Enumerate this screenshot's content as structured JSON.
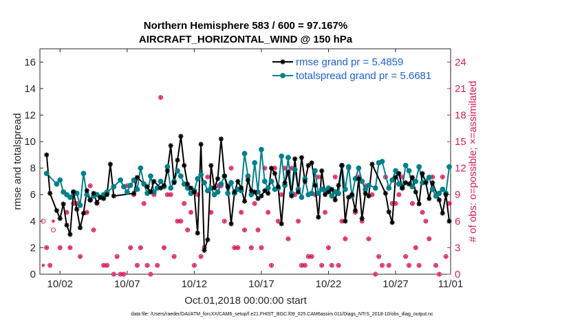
{
  "chart_data": {
    "type": "line",
    "title_line1": "Northern Hemisphere 583 / 600 = 97.167%",
    "title_line2": "AIRCRAFT_HORIZONTAL_WIND @ 150 hPa",
    "ylabel_left": "rmse and totalspread",
    "ylabel_right": "# of obs: o=possible; ×=assimilated",
    "xlabel": "Oct.01,2018 00:00:00 start",
    "footnote": "data file: /Users/raeder/DAI/ATM_forcXX/CAM6_setup/f.e21.FHIST_BGC.f09_025.CAM6assim.011/Diags_NTrS_2018-10/obs_diag_output.nc",
    "xlim": [
      0.5,
      31.1
    ],
    "ylim_left": [
      0,
      17
    ],
    "ylim_right": [
      0,
      25.5
    ],
    "x_ticks": [
      2,
      7,
      12,
      17,
      22,
      27,
      32
    ],
    "x_tick_labels": [
      "10/02",
      "10/07",
      "10/12",
      "10/17",
      "10/22",
      "10/27",
      "11/01"
    ],
    "y_ticks_left": [
      0,
      2,
      4,
      6,
      8,
      10,
      12,
      14,
      16
    ],
    "y_ticks_right": [
      0,
      3,
      6,
      9,
      12,
      15,
      18,
      21,
      24
    ],
    "legend": [
      {
        "label": "rmse grand pr = 5.4859",
        "color": "#000000"
      },
      {
        "label": "totalspread grand pr = 5.6681",
        "color": "#00808a"
      }
    ],
    "colors": {
      "rmse": "#000000",
      "spread": "#00808a",
      "obs": "#d81b60",
      "axis": "#262626"
    },
    "series": [
      {
        "name": "rmse",
        "color": "#000000",
        "x": [
          1.0,
          1.25,
          1.75,
          2.0,
          2.25,
          2.5,
          2.75,
          3.0,
          3.25,
          3.5,
          3.75,
          4.0,
          4.25,
          4.5,
          4.75,
          5.0,
          5.25,
          5.5,
          5.75,
          6.0,
          7.5,
          7.75,
          8.5,
          8.75,
          9.0,
          9.5,
          9.75,
          10.0,
          10.25,
          10.5,
          10.75,
          11.0,
          11.25,
          11.5,
          11.75,
          12.0,
          12.25,
          12.5,
          12.75,
          13.0,
          13.25,
          13.5,
          13.75,
          14.0,
          14.25,
          14.5,
          14.75,
          15.0,
          15.25,
          15.5,
          15.75,
          16.0,
          16.25,
          16.5,
          16.75,
          17.0,
          17.25,
          17.5,
          17.75,
          18.0,
          18.25,
          18.5,
          18.75,
          19.0,
          19.25,
          19.5,
          19.75,
          20.0,
          20.25,
          20.5,
          20.75,
          21.0,
          21.25,
          21.5,
          21.75,
          22.0,
          22.25,
          22.5,
          22.75,
          23.0,
          23.25,
          23.5,
          23.75,
          24.0,
          24.25,
          24.5,
          24.75,
          25.0,
          25.25,
          26.25,
          26.5,
          26.75,
          27.0,
          27.25,
          27.5,
          27.75,
          28.0,
          28.25,
          28.5,
          28.75,
          29.0,
          29.25,
          29.5,
          29.75,
          30.25,
          30.5,
          30.75,
          31.0
        ],
        "y": [
          9.0,
          6.1,
          4.8,
          4.2,
          5.3,
          3.7,
          3.0,
          6.2,
          4.9,
          3.5,
          4.6,
          6.3,
          5.6,
          6.1,
          5.4,
          5.8,
          5.7,
          6.0,
          8.3,
          5.9,
          6.1,
          7.3,
          6.6,
          6.2,
          7.0,
          6.5,
          6.7,
          7.8,
          9.7,
          6.9,
          8.6,
          10.4,
          8.2,
          6.8,
          6.5,
          6.2,
          3.1,
          9.8,
          1.8,
          2.6,
          8.2,
          6.5,
          7.2,
          10.2,
          7.4,
          6.6,
          3.8,
          6.2,
          7.0,
          6.5,
          5.5,
          7.1,
          6.3,
          6.2,
          5.7,
          5.9,
          6.3,
          6.1,
          8.0,
          7.6,
          6.6,
          3.8,
          6.9,
          7.7,
          5.9,
          8.7,
          6.2,
          8.8,
          7.0,
          8.2,
          8.4,
          6.7,
          4.3,
          7.8,
          6.0,
          6.2,
          6.4,
          5.6,
          6.7,
          8.2,
          4.0,
          5.8,
          6.0,
          4.8,
          7.2,
          4.2,
          6.1,
          5.9,
          8.3,
          6.1,
          4.7,
          3.9,
          7.3,
          7.6,
          6.5,
          6.9,
          6.8,
          7.3,
          6.2,
          5.3,
          7.6,
          6.9,
          5.7,
          6.9,
          5.6,
          4.6,
          6.0,
          4.0
        ],
        "x_b": [
          1.75,
          2.0,
          2.25,
          2.5,
          2.75,
          3.0,
          3.25,
          3.5,
          3.75,
          4.0,
          4.25,
          4.5,
          4.75,
          5.0,
          5.25,
          5.5,
          5.75,
          6.0,
          7.5,
          7.75,
          8.5,
          8.75,
          9.0,
          9.5,
          9.75,
          10.0,
          10.25,
          10.5,
          10.75,
          11.0,
          11.25,
          11.5,
          11.75,
          12.0,
          12.25,
          12.5,
          12.75,
          13.0,
          13.25,
          13.5,
          13.75,
          14.0,
          14.25,
          14.5,
          14.75,
          15.0,
          15.25,
          15.5,
          15.75,
          16.0,
          16.25,
          16.5,
          16.75,
          17.0,
          17.25,
          17.5,
          17.75,
          18.0,
          18.25,
          18.5,
          18.75,
          19.0,
          19.25,
          19.5,
          19.75,
          20.0,
          20.25,
          20.5,
          20.75,
          21.0,
          21.25,
          21.5,
          21.75,
          22.0,
          22.25,
          22.5,
          22.75,
          23.0,
          23.25,
          23.5,
          23.75,
          24.0,
          24.25,
          24.5,
          24.75,
          25.0,
          25.25,
          26.25,
          26.5,
          26.75,
          27.0,
          27.25,
          27.5,
          27.75,
          28.0,
          28.25,
          28.5,
          28.75,
          29.0,
          29.25,
          29.5,
          29.75,
          30.25,
          30.5,
          30.75,
          31.0
        ],
        "note": ""
      },
      {
        "name": "totalspread",
        "color": "#00808a",
        "x": [
          1.0,
          1.75,
          2.0,
          2.25,
          2.5,
          2.75,
          3.0,
          3.25,
          3.5,
          3.75,
          4.0,
          4.25,
          4.5,
          4.75,
          5.0,
          5.25,
          5.5,
          6.0,
          6.5,
          6.75,
          7.0,
          7.25,
          7.5,
          7.75,
          8.0,
          8.25,
          8.5,
          8.75,
          9.0,
          9.25,
          9.5,
          9.75,
          10.0,
          10.25,
          10.5,
          10.75,
          11.0,
          11.25,
          11.5,
          11.75,
          12.0,
          12.25,
          12.5,
          12.75,
          13.0,
          13.25,
          13.5,
          13.75,
          14.0,
          14.25,
          14.5,
          14.75,
          15.0,
          15.25,
          15.5,
          15.75,
          16.0,
          16.25,
          16.5,
          16.75,
          17.0,
          17.25,
          17.5,
          17.75,
          18.0,
          18.25,
          18.5,
          18.75,
          19.0,
          19.25,
          19.5,
          19.75,
          20.0,
          20.25,
          20.5,
          20.75,
          21.0,
          21.25,
          21.5,
          21.75,
          22.0,
          22.25,
          22.5,
          22.75,
          23.0,
          23.25,
          23.5,
          23.75,
          24.0,
          24.25,
          24.5,
          24.75,
          25.0,
          25.5,
          25.75,
          26.0,
          26.5,
          26.75,
          27.0,
          27.25,
          27.5,
          27.75,
          28.0,
          28.25,
          28.5,
          28.75,
          29.0,
          29.25,
          29.5,
          29.75,
          30.0,
          30.25,
          30.5,
          30.75,
          31.0
        ],
        "y": [
          7.6,
          6.8,
          7.1,
          6.2,
          6.0,
          5.8,
          6.2,
          6.1,
          5.2,
          7.6,
          6.0,
          5.6,
          5.9,
          6.0,
          5.8,
          6.0,
          6.2,
          6.6,
          7.1,
          6.6,
          6.2,
          6.7,
          7.1,
          6.4,
          8.0,
          6.8,
          6.1,
          7.4,
          6.2,
          6.5,
          7.0,
          6.6,
          8.1,
          6.5,
          7.0,
          7.8,
          7.4,
          6.8,
          6.5,
          6.1,
          6.3,
          7.2,
          7.5,
          6.9,
          6.3,
          6.5,
          6.0,
          6.2,
          6.8,
          7.4,
          6.1,
          6.9,
          6.1,
          6.4,
          6.3,
          9.1,
          7.4,
          6.0,
          8.4,
          6.2,
          9.4,
          7.0,
          6.5,
          7.0,
          6.4,
          6.5,
          8.9,
          6.7,
          8.8,
          6.1,
          7.9,
          6.4,
          5.8,
          7.2,
          6.0,
          6.1,
          7.8,
          6.1,
          6.4,
          6.3,
          6.5,
          5.9,
          6.2,
          6.1,
          8.2,
          6.4,
          8.1,
          5.9,
          7.2,
          8.0,
          7.0,
          6.4,
          6.7,
          6.5,
          8.4,
          8.5,
          6.5,
          7.1,
          7.8,
          6.8,
          6.5,
          8.2,
          7.8,
          6.6,
          7.0,
          8.1,
          6.9,
          7.0,
          7.3,
          6.4,
          5.9,
          6.1,
          6.4,
          6.1,
          8.1
        ],
        "note": ""
      }
    ],
    "obs_possible": {
      "x": [
        0.75,
        1.0,
        1.25,
        1.5,
        2.0,
        2.5,
        2.75,
        3.0,
        3.25,
        3.5,
        4.0,
        4.25,
        4.5,
        4.75,
        5.25,
        5.5,
        6.0,
        6.25,
        6.5,
        6.75,
        7.0,
        7.25,
        7.5,
        7.75,
        8.0,
        8.25,
        8.5,
        8.75,
        9.0,
        9.25,
        9.5,
        9.75,
        10.0,
        10.25,
        10.5,
        10.75,
        11.0,
        11.25,
        11.5,
        11.75,
        12.0,
        12.25,
        12.5,
        12.75,
        13.0,
        13.25,
        13.5,
        13.75,
        14.0,
        14.25,
        14.5,
        14.75,
        15.0,
        15.25,
        15.5,
        15.75,
        16.0,
        16.25,
        16.5,
        16.75,
        17.0,
        17.25,
        17.5,
        17.75,
        18.0,
        18.25,
        18.5,
        18.75,
        19.0,
        19.25,
        19.5,
        19.75,
        20.0,
        20.25,
        20.5,
        20.75,
        21.0,
        21.25,
        21.5,
        21.75,
        22.0,
        22.25,
        22.5,
        22.75,
        23.0,
        23.25,
        23.5,
        23.75,
        24.0,
        24.25,
        24.5,
        24.75,
        25.0,
        25.25,
        25.5,
        25.75,
        26.0,
        26.25,
        26.5,
        26.75,
        27.0,
        27.25,
        27.5,
        27.75,
        28.0,
        28.25,
        28.5,
        28.75,
        29.0,
        29.25,
        29.5,
        29.75,
        30.0,
        30.25,
        30.5,
        30.75,
        31.0
      ],
      "y": [
        6,
        3,
        1,
        5,
        3,
        7,
        3,
        8,
        8,
        2,
        7,
        10,
        5,
        8,
        1,
        1,
        0,
        2,
        0,
        0,
        10,
        3,
        9,
        1,
        3,
        8,
        1,
        0,
        9,
        1,
        20,
        3,
        9,
        9,
        2,
        6,
        6,
        8,
        5,
        7,
        1,
        9,
        2,
        3,
        11,
        7,
        9,
        10,
        10,
        6,
        10,
        12,
        3,
        3,
        7,
        5,
        11,
        3,
        8,
        5,
        3,
        12,
        7,
        1,
        12,
        6,
        9,
        12,
        4,
        12,
        9,
        6,
        1,
        1,
        2,
        2,
        9,
        11,
        1,
        7,
        3,
        1,
        11,
        1,
        6,
        4,
        12,
        9,
        7,
        11,
        6,
        10,
        4,
        9,
        0,
        2,
        1,
        11,
        1,
        8,
        8,
        9,
        11,
        2,
        1,
        8,
        3,
        1,
        7,
        6,
        4,
        11,
        1,
        0,
        11,
        2,
        8
      ]
    },
    "obs_assimilated": {
      "x": [
        0.75,
        1.0,
        1.25,
        1.5,
        2.0,
        2.5,
        2.75,
        3.0,
        3.25,
        3.5,
        4.0,
        4.25,
        4.5,
        4.75,
        5.25,
        5.5,
        6.0,
        6.25,
        6.5,
        6.75,
        7.0,
        7.25,
        7.5,
        7.75,
        8.0,
        8.25,
        8.5,
        8.75,
        9.0,
        9.25,
        9.5,
        9.75,
        10.0,
        10.25,
        10.5,
        10.75,
        11.0,
        11.25,
        11.5,
        11.75,
        12.0,
        12.25,
        12.5,
        12.75,
        13.0,
        13.25,
        13.5,
        13.75,
        14.0,
        14.25,
        14.5,
        14.75,
        15.0,
        15.25,
        15.5,
        15.75,
        16.0,
        16.25,
        16.5,
        16.75,
        17.0,
        17.25,
        17.5,
        17.75,
        18.0,
        18.25,
        18.5,
        18.75,
        19.0,
        19.25,
        19.5,
        19.75,
        20.0,
        20.25,
        20.5,
        20.75,
        21.0,
        21.25,
        21.5,
        21.75,
        22.0,
        22.25,
        22.5,
        22.75,
        23.0,
        23.25,
        23.5,
        23.75,
        24.0,
        24.25,
        24.5,
        24.75,
        25.0,
        25.25,
        25.5,
        25.75,
        26.0,
        26.25,
        26.5,
        26.75,
        27.0,
        27.25,
        27.5,
        27.75,
        28.0,
        28.25,
        28.5,
        28.75,
        29.0,
        29.25,
        29.5,
        29.75,
        30.0,
        30.25,
        30.5,
        30.75,
        31.0
      ],
      "y": [
        1,
        3,
        1,
        6,
        3,
        7,
        3,
        8,
        8,
        2,
        7,
        10,
        5,
        8,
        1,
        1,
        0,
        2,
        0,
        0,
        10,
        3,
        9,
        1,
        3,
        8,
        1,
        0,
        9,
        1,
        20,
        3,
        9,
        9,
        2,
        6,
        6,
        8,
        5,
        7,
        1,
        9,
        2,
        3,
        11,
        7,
        9,
        10,
        10,
        6,
        10,
        12,
        3,
        3,
        7,
        5,
        11,
        3,
        8,
        5,
        3,
        12,
        7,
        1,
        12,
        6,
        9,
        12,
        4,
        12,
        9,
        6,
        1,
        1,
        2,
        2,
        9,
        11,
        1,
        7,
        3,
        1,
        11,
        1,
        6,
        4,
        12,
        9,
        7,
        11,
        6,
        10,
        4,
        9,
        0,
        2,
        1,
        11,
        1,
        8,
        8,
        9,
        11,
        2,
        1,
        8,
        3,
        1,
        7,
        6,
        4,
        11,
        1,
        0,
        11,
        2,
        8
      ]
    }
  }
}
